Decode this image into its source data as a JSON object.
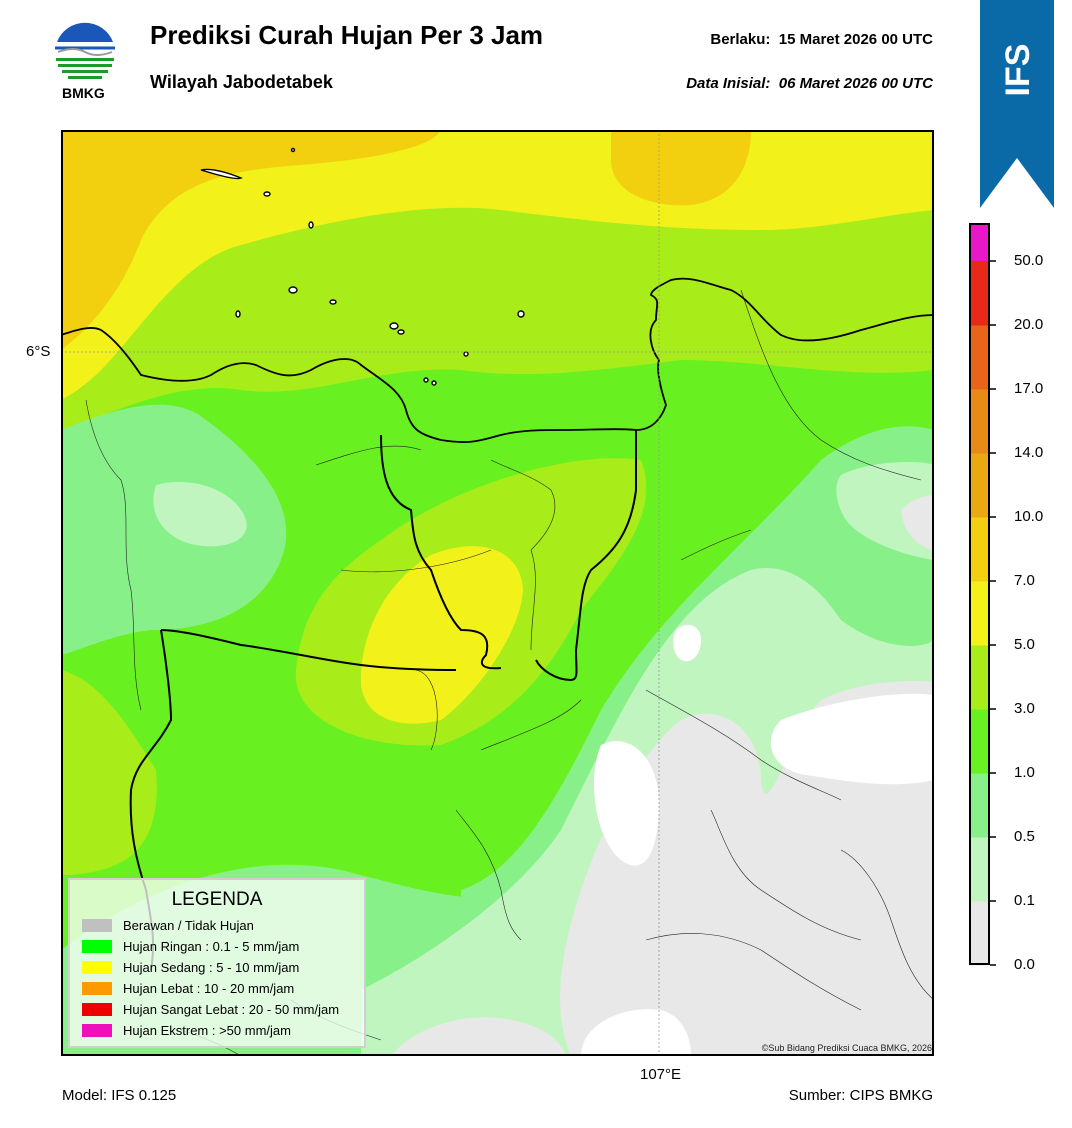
{
  "header": {
    "title": "Prediksi Curah Hujan Per 3 Jam",
    "subtitle": "Wilayah Jabodetabek",
    "valid_label": "Berlaku:",
    "valid_value": "15 Maret 2026 00 UTC",
    "init_label": "Data Inisial:",
    "init_value": "06 Maret 2026 00 UTC"
  },
  "logo": {
    "text": "BMKG",
    "icon": "bmkg-logo-icon"
  },
  "badge": {
    "text": "IFS",
    "color": "#0a6aa8"
  },
  "map": {
    "lat_label": "6°S",
    "lon_label": "107°E",
    "copyright": "©Sub Bidang Prediksi Cuaca BMKG, 2026"
  },
  "legend": {
    "title": "LEGENDA",
    "items": [
      {
        "label": "Berawan / Tidak Hujan",
        "color": "#c0c0c0"
      },
      {
        "label": "Hujan Ringan : 0.1 - 5 mm/jam",
        "color": "#00ff00"
      },
      {
        "label": "Hujan Sedang : 5 - 10 mm/jam",
        "color": "#ffff00"
      },
      {
        "label": "Hujan Lebat : 10 - 20 mm/jam",
        "color": "#ff9900"
      },
      {
        "label": "Hujan Sangat Lebat : 20 - 50 mm/jam",
        "color": "#ee0000"
      },
      {
        "label": "Hujan Ekstrem : >50 mm/jam",
        "color": "#ee11bb"
      }
    ]
  },
  "colorbar": {
    "ticks": [
      "0.0",
      "0.1",
      "0.5",
      "1.0",
      "3.0",
      "5.0",
      "7.0",
      "10.0",
      "14.0",
      "17.0",
      "20.0",
      "50.0"
    ],
    "colors": [
      "#e8e8e8",
      "#c0f5c0",
      "#88f088",
      "#68f020",
      "#a8ec1a",
      "#f2f21a",
      "#f2d010",
      "#eaa812",
      "#e88a18",
      "#e86418",
      "#e82818",
      "#e818c8"
    ]
  },
  "footer": {
    "model": "Model: IFS 0.125",
    "source": "Sumber: CIPS BMKG"
  }
}
